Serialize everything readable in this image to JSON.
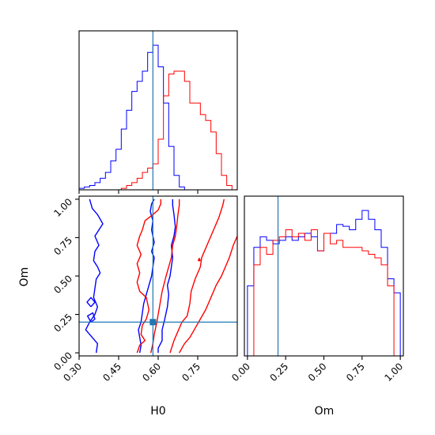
{
  "chart_data": {
    "type": "corner",
    "parameters": [
      "H0",
      "Om"
    ],
    "truths": {
      "H0": 0.58,
      "Om": 0.2
    },
    "colors": {
      "truth": "#1f77b4",
      "series_a": "#0000ff",
      "series_b": "#ff0000"
    },
    "series": [
      {
        "color": "#0000ff"
      },
      {
        "color": "#ff0000"
      }
    ],
    "axes": {
      "H0": {
        "label": "H0",
        "lim": [
          0.3,
          0.9
        ],
        "ticks": [
          0.3,
          0.45,
          0.6,
          0.75
        ],
        "tick_labels": [
          "0.30",
          "0.45",
          "0.60",
          "0.75"
        ]
      },
      "Om": {
        "label": "Om",
        "lim": [
          -0.02,
          1.02
        ],
        "ticks": [
          0.0,
          0.25,
          0.5,
          0.75,
          1.0
        ],
        "tick_labels": [
          "0.00",
          "0.25",
          "0.50",
          "0.75",
          "1.00"
        ]
      }
    },
    "hist_H0": {
      "type": "histogram",
      "bin_range": [
        0.3,
        0.9
      ],
      "series": [
        {
          "color": "#0000ff",
          "counts": [
            1,
            2,
            3,
            5,
            8,
            12,
            20,
            28,
            42,
            55,
            68,
            75,
            82,
            95,
            100,
            85,
            60,
            30,
            10,
            2,
            0,
            0,
            0,
            0,
            0,
            0,
            0,
            0,
            0,
            0
          ]
        },
        {
          "color": "#ff0000",
          "counts": [
            0,
            0,
            0,
            0,
            0,
            0,
            0,
            0,
            1,
            3,
            5,
            8,
            12,
            15,
            18,
            35,
            65,
            80,
            82,
            82,
            75,
            60,
            60,
            52,
            48,
            40,
            25,
            10,
            3,
            0
          ]
        }
      ]
    },
    "hist_Om": {
      "type": "histogram",
      "bin_range": [
        0.0,
        1.0
      ],
      "series": [
        {
          "color": "#0000ff",
          "counts": [
            40,
            62,
            68,
            66,
            64,
            66,
            68,
            66,
            68,
            70,
            68,
            60,
            70,
            70,
            75,
            74,
            72,
            78,
            83,
            78,
            72,
            62,
            44,
            36
          ]
        },
        {
          "color": "#ff0000",
          "counts": [
            0,
            52,
            62,
            58,
            66,
            68,
            72,
            68,
            70,
            66,
            72,
            60,
            70,
            64,
            66,
            62,
            62,
            62,
            60,
            58,
            56,
            52,
            40,
            0
          ]
        }
      ]
    },
    "contours_H0_Om": {
      "type": "contour",
      "series": [
        {
          "color": "#0000ff",
          "paths": [
            [
              [
                0.365,
                0.0
              ],
              [
                0.37,
                0.06
              ],
              [
                0.35,
                0.1
              ],
              [
                0.325,
                0.15
              ],
              [
                0.34,
                0.2
              ],
              [
                0.36,
                0.25
              ],
              [
                0.37,
                0.3
              ],
              [
                0.355,
                0.36
              ],
              [
                0.36,
                0.42
              ],
              [
                0.365,
                0.48
              ],
              [
                0.38,
                0.52
              ],
              [
                0.37,
                0.56
              ],
              [
                0.355,
                0.6
              ],
              [
                0.36,
                0.66
              ],
              [
                0.375,
                0.7
              ],
              [
                0.36,
                0.76
              ],
              [
                0.375,
                0.8
              ],
              [
                0.39,
                0.84
              ],
              [
                0.37,
                0.9
              ],
              [
                0.35,
                0.94
              ],
              [
                0.34,
                1.0
              ]
            ],
            [
              [
                0.345,
                0.3
              ],
              [
                0.33,
                0.33
              ],
              [
                0.345,
                0.36
              ],
              [
                0.36,
                0.33
              ],
              [
                0.345,
                0.3
              ]
            ],
            [
              [
                0.345,
                0.2
              ],
              [
                0.332,
                0.24
              ],
              [
                0.352,
                0.26
              ],
              [
                0.36,
                0.22
              ],
              [
                0.345,
                0.2
              ]
            ],
            [
              [
                0.53,
                0.0
              ],
              [
                0.535,
                0.05
              ],
              [
                0.53,
                0.1
              ],
              [
                0.525,
                0.15
              ],
              [
                0.535,
                0.2
              ],
              [
                0.54,
                0.26
              ],
              [
                0.545,
                0.32
              ],
              [
                0.555,
                0.38
              ],
              [
                0.565,
                0.44
              ],
              [
                0.575,
                0.5
              ],
              [
                0.58,
                0.56
              ],
              [
                0.585,
                0.62
              ],
              [
                0.575,
                0.66
              ],
              [
                0.585,
                0.72
              ],
              [
                0.575,
                0.8
              ],
              [
                0.58,
                0.86
              ],
              [
                0.57,
                0.92
              ],
              [
                0.575,
                0.97
              ],
              [
                0.585,
                1.0
              ]
            ],
            [
              [
                0.6,
                0.03
              ],
              [
                0.6,
                0.0
              ]
            ],
            [
              [
                0.6,
                0.03
              ],
              [
                0.615,
                0.08
              ],
              [
                0.615,
                0.15
              ],
              [
                0.625,
                0.22
              ],
              [
                0.635,
                0.3
              ],
              [
                0.64,
                0.38
              ],
              [
                0.635,
                0.44
              ],
              [
                0.645,
                0.5
              ],
              [
                0.65,
                0.56
              ],
              [
                0.655,
                0.62
              ],
              [
                0.65,
                0.7
              ],
              [
                0.66,
                0.76
              ],
              [
                0.665,
                0.82
              ],
              [
                0.66,
                0.9
              ],
              [
                0.655,
                0.96
              ],
              [
                0.655,
                1.0
              ]
            ]
          ]
        },
        {
          "color": "#ff0000",
          "paths": [
            [
              [
                0.52,
                0.0
              ],
              [
                0.53,
                0.05
              ],
              [
                0.55,
                0.08
              ],
              [
                0.535,
                0.12
              ],
              [
                0.54,
                0.18
              ],
              [
                0.555,
                0.22
              ],
              [
                0.565,
                0.28
              ],
              [
                0.555,
                0.36
              ],
              [
                0.53,
                0.4
              ],
              [
                0.52,
                0.46
              ],
              [
                0.53,
                0.52
              ],
              [
                0.52,
                0.58
              ],
              [
                0.535,
                0.64
              ],
              [
                0.52,
                0.7
              ],
              [
                0.53,
                0.76
              ],
              [
                0.54,
                0.8
              ],
              [
                0.55,
                0.86
              ],
              [
                0.565,
                0.88
              ],
              [
                0.58,
                0.9
              ],
              [
                0.6,
                0.93
              ],
              [
                0.61,
                0.97
              ],
              [
                0.61,
                1.0
              ]
            ],
            [
              [
                0.572,
                0.0
              ],
              [
                0.58,
                0.06
              ],
              [
                0.585,
                0.12
              ],
              [
                0.595,
                0.2
              ],
              [
                0.605,
                0.3
              ],
              [
                0.615,
                0.4
              ],
              [
                0.63,
                0.5
              ],
              [
                0.64,
                0.56
              ],
              [
                0.65,
                0.62
              ],
              [
                0.655,
                0.7
              ],
              [
                0.665,
                0.76
              ],
              [
                0.67,
                0.82
              ],
              [
                0.675,
                0.9
              ],
              [
                0.68,
                0.96
              ],
              [
                0.68,
                1.0
              ]
            ],
            [
              [
                0.645,
                0.0
              ],
              [
                0.66,
                0.08
              ],
              [
                0.675,
                0.14
              ],
              [
                0.69,
                0.2
              ],
              [
                0.71,
                0.24
              ],
              [
                0.72,
                0.32
              ],
              [
                0.725,
                0.4
              ],
              [
                0.74,
                0.48
              ],
              [
                0.76,
                0.56
              ],
              [
                0.765,
                0.62
              ],
              [
                0.78,
                0.68
              ],
              [
                0.795,
                0.74
              ],
              [
                0.81,
                0.8
              ],
              [
                0.83,
                0.88
              ],
              [
                0.845,
                0.96
              ],
              [
                0.85,
                1.0
              ]
            ],
            [
              [
                0.68,
                0.0
              ],
              [
                0.7,
                0.06
              ],
              [
                0.72,
                0.1
              ],
              [
                0.74,
                0.16
              ],
              [
                0.76,
                0.22
              ],
              [
                0.78,
                0.28
              ],
              [
                0.8,
                0.36
              ],
              [
                0.82,
                0.44
              ],
              [
                0.84,
                0.5
              ],
              [
                0.855,
                0.56
              ],
              [
                0.87,
                0.62
              ],
              [
                0.885,
                0.7
              ],
              [
                0.9,
                0.76
              ]
            ],
            [
              [
                0.76,
                0.6
              ],
              [
                0.752,
                0.6
              ],
              [
                0.756,
                0.615
              ],
              [
                0.76,
                0.6
              ]
            ]
          ]
        }
      ]
    }
  }
}
